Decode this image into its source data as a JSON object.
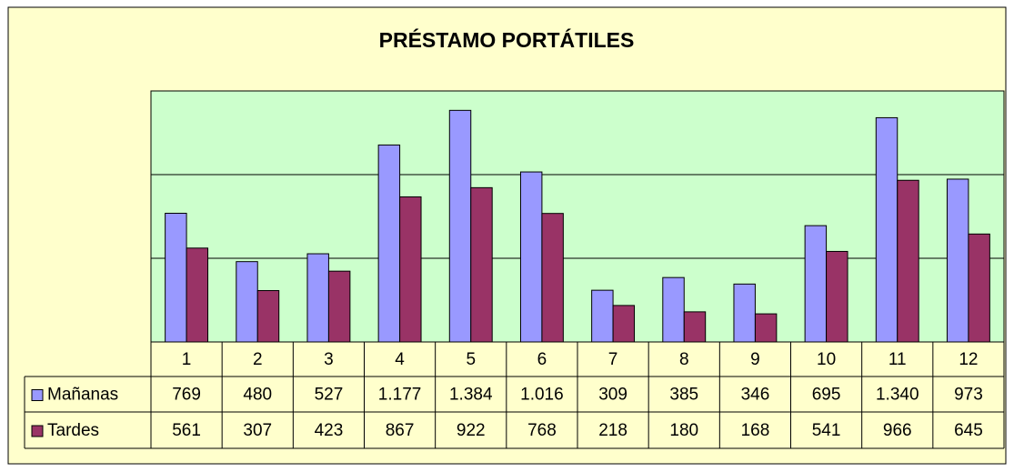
{
  "chart_data": {
    "type": "bar",
    "title": "PRÉSTAMO PORTÁTILES",
    "categories": [
      "1",
      "2",
      "3",
      "4",
      "5",
      "6",
      "7",
      "8",
      "9",
      "10",
      "11",
      "12"
    ],
    "series": [
      {
        "name": "Mañanas",
        "color": "#9999ff",
        "values": [
          769,
          480,
          527,
          1177,
          1384,
          1016,
          309,
          385,
          346,
          695,
          1340,
          973
        ],
        "value_labels": [
          "769",
          "480",
          "527",
          "1.177",
          "1.384",
          "1.016",
          "309",
          "385",
          "346",
          "695",
          "1.340",
          "973"
        ]
      },
      {
        "name": "Tardes",
        "color": "#993366",
        "values": [
          561,
          307,
          423,
          867,
          922,
          768,
          218,
          180,
          168,
          541,
          966,
          645
        ]
      }
    ],
    "ylim": [
      0,
      1500
    ],
    "yticks": [
      0,
      500,
      1000,
      1500
    ],
    "grid": true
  }
}
